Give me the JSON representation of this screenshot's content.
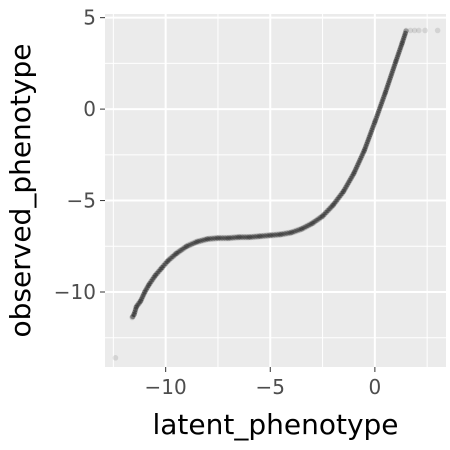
{
  "chart_data": {
    "type": "scatter",
    "title": "",
    "xlabel": "latent_phenotype",
    "ylabel": "observed_phenotype",
    "xlim": [
      -12.9,
      3.4
    ],
    "ylim": [
      -14.1,
      5.2
    ],
    "x_ticks": [
      -10,
      -5,
      0
    ],
    "x_tick_labels": [
      "−10",
      "−5",
      "0"
    ],
    "y_ticks": [
      -10,
      -5,
      0,
      5
    ],
    "y_tick_labels": [
      "−10",
      "−5",
      "0",
      "5"
    ],
    "x_minor_ticks": [
      -12.5,
      -7.5,
      -2.5,
      2.5
    ],
    "y_minor_ticks": [
      -12.5,
      -7.5,
      -2.5,
      2.5
    ],
    "grid": true,
    "legend": "none",
    "colors": {
      "panel": "#ebebeb",
      "grid": "#ffffff",
      "point": "#000000"
    },
    "point_opacity": 0.1,
    "series": [
      {
        "points": [
          [
            -12.4,
            -13.6
          ],
          [
            -11.6,
            -11.4
          ],
          [
            -11.5,
            -11.2
          ],
          [
            -11.4,
            -10.8
          ],
          [
            -11.2,
            -10.5
          ],
          [
            -11.0,
            -10.0
          ],
          [
            -10.8,
            -9.6
          ],
          [
            -10.5,
            -9.1
          ],
          [
            -10.2,
            -8.7
          ],
          [
            -9.9,
            -8.3
          ],
          [
            -9.5,
            -7.9
          ],
          [
            -9.0,
            -7.5
          ],
          [
            -8.5,
            -7.25
          ],
          [
            -8.0,
            -7.1
          ],
          [
            -7.5,
            -7.05
          ],
          [
            -7.0,
            -7.05
          ],
          [
            -6.5,
            -7.0
          ],
          [
            -6.0,
            -7.0
          ],
          [
            -5.5,
            -6.95
          ],
          [
            -5.0,
            -6.9
          ],
          [
            -4.5,
            -6.85
          ],
          [
            -4.0,
            -6.75
          ],
          [
            -3.5,
            -6.55
          ],
          [
            -3.0,
            -6.25
          ],
          [
            -2.5,
            -5.85
          ],
          [
            -2.0,
            -5.25
          ],
          [
            -1.5,
            -4.5
          ],
          [
            -1.0,
            -3.5
          ],
          [
            -0.5,
            -2.25
          ],
          [
            0.0,
            -0.7
          ],
          [
            0.5,
            0.9
          ],
          [
            1.0,
            2.6
          ],
          [
            1.3,
            3.6
          ],
          [
            1.5,
            4.3
          ],
          [
            1.7,
            4.3
          ],
          [
            1.9,
            4.3
          ],
          [
            2.1,
            4.3
          ],
          [
            2.4,
            4.3
          ],
          [
            3.0,
            4.3
          ]
        ]
      }
    ]
  }
}
